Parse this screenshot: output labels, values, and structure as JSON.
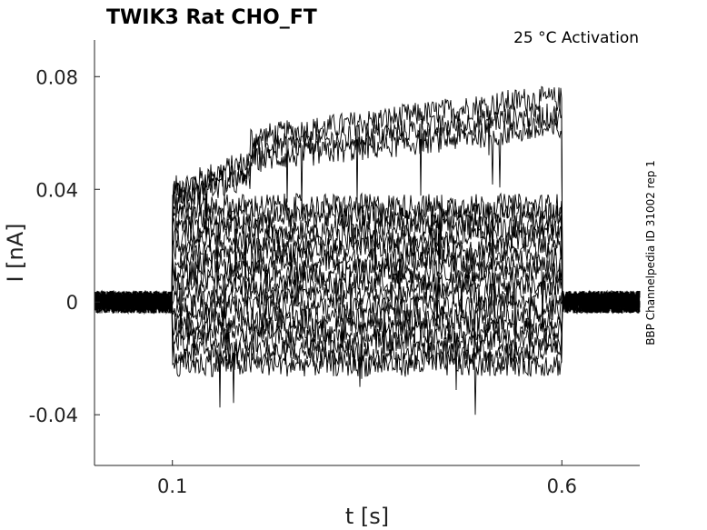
{
  "chart_data": {
    "type": "line",
    "title": "TWIK3  Rat  CHO_FT",
    "annotation": "25 °C  Activation",
    "side_label": "BBP Channelpedia ID 31002 rep 1",
    "xlabel": "t [s]",
    "ylabel": "I [nA]",
    "xlim": [
      0.0,
      0.7
    ],
    "ylim": [
      -0.058,
      0.093
    ],
    "xticks": [
      {
        "value": 0.1,
        "label": "0.1"
      },
      {
        "value": 0.6,
        "label": "0.6"
      }
    ],
    "yticks": [
      {
        "value": 0.08,
        "label": "0.08"
      },
      {
        "value": 0.04,
        "label": "0.04"
      },
      {
        "value": 0,
        "label": "0"
      },
      {
        "value": -0.04,
        "label": "-0.04"
      }
    ],
    "line_color": "#000000",
    "grid": false,
    "stimulus_window": [
      0.1,
      0.6
    ],
    "series_steady_levels_nA": [
      {
        "start": 0.04,
        "end": 0.072
      },
      {
        "start": 0.038,
        "end": 0.066
      },
      {
        "start": 0.036,
        "end": 0.061
      },
      {
        "start": 0.034,
        "end": 0.034
      },
      {
        "start": 0.03,
        "end": 0.031
      },
      {
        "start": 0.026,
        "end": 0.027
      },
      {
        "start": 0.022,
        "end": 0.023
      },
      {
        "start": 0.018,
        "end": 0.019
      },
      {
        "start": 0.014,
        "end": 0.015
      },
      {
        "start": 0.01,
        "end": 0.011
      },
      {
        "start": 0.006,
        "end": 0.007
      },
      {
        "start": 0.002,
        "end": 0.003
      },
      {
        "start": -0.002,
        "end": -0.002
      },
      {
        "start": -0.006,
        "end": -0.006
      },
      {
        "start": -0.01,
        "end": -0.01
      },
      {
        "start": -0.014,
        "end": -0.014
      },
      {
        "start": -0.018,
        "end": -0.018
      },
      {
        "start": -0.022,
        "end": -0.022
      }
    ]
  }
}
